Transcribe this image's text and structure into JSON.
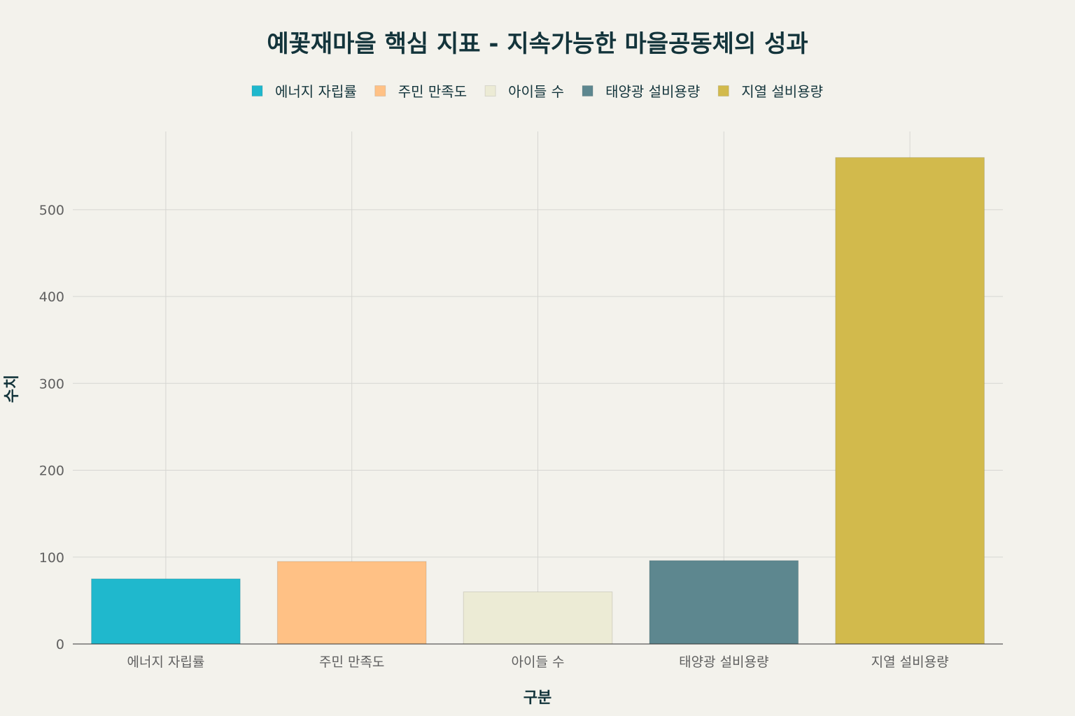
{
  "chart_data": {
    "type": "bar",
    "title": "예꽃재마을 핵심 지표 - 지속가능한 마을공동체의 성과",
    "xlabel": "구분",
    "ylabel": "수치",
    "categories": [
      "에너지 자립률",
      "주민 만족도",
      "아이들 수",
      "태양광 설비용량",
      "지열 설비용량"
    ],
    "values": [
      75,
      95,
      60,
      96,
      560
    ],
    "colors": [
      "#1fb8cd",
      "#ffc185",
      "#eceBd5",
      "#5d878f",
      "#d2ba4c"
    ],
    "ylim": [
      0,
      590
    ],
    "yticks": [
      0,
      100,
      200,
      300,
      400,
      500
    ],
    "grid": true,
    "legend": {
      "position": "top-center",
      "entries": [
        "에너지 자립률",
        "주민 만족도",
        "아이들 수",
        "태양광 설비용량",
        "지열 설비용량"
      ]
    }
  }
}
